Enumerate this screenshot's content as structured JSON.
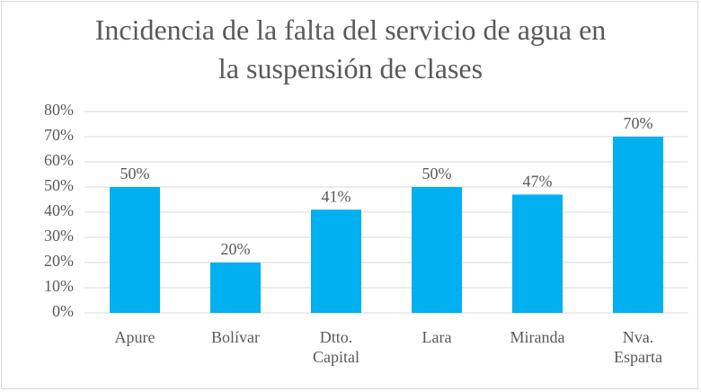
{
  "chart_data": {
    "type": "bar",
    "title": "Incidencia de la falta del servicio de agua en la suspensión de clases",
    "categories": [
      "Apure",
      "Bolívar",
      "Dtto. Capital",
      "Lara",
      "Miranda",
      "Nva. Esparta"
    ],
    "values": [
      50,
      20,
      41,
      50,
      47,
      70
    ],
    "value_labels": [
      "50%",
      "20%",
      "41%",
      "50%",
      "47%",
      "70%"
    ],
    "color": "#00b0f0",
    "ylim": [
      0,
      80
    ],
    "yticks": [
      {
        "value": 0,
        "label": "0%"
      },
      {
        "value": 10,
        "label": "10%"
      },
      {
        "value": 20,
        "label": "20%"
      },
      {
        "value": 30,
        "label": "30%"
      },
      {
        "value": 40,
        "label": "40%"
      },
      {
        "value": 50,
        "label": "50%"
      },
      {
        "value": 60,
        "label": "60%"
      },
      {
        "value": 70,
        "label": "70%"
      },
      {
        "value": 80,
        "label": "80%"
      }
    ],
    "grid": true
  }
}
